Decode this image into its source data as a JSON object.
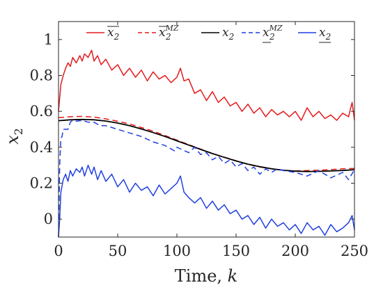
{
  "chart_data": {
    "type": "line",
    "title": "",
    "xlabel_text": "Time, ",
    "xlabel_var": "k",
    "ylabel_var": "x",
    "ylabel_sub": "2",
    "xlim": [
      0,
      250
    ],
    "ylim": [
      -0.1,
      1.1
    ],
    "xticks": [
      0,
      50,
      100,
      150,
      200,
      250
    ],
    "yticks": [
      0,
      0.2,
      0.4,
      0.6,
      0.8,
      1
    ],
    "grid": false,
    "legend_position": "top",
    "series": [
      {
        "legend": {
          "base": "x",
          "sub": "2",
          "sup": "",
          "overline": true,
          "underline": false
        },
        "color": "#e41a1c",
        "dash": "solid",
        "x": [
          0,
          2,
          4,
          6,
          8,
          10,
          12,
          15,
          18,
          20,
          22,
          25,
          28,
          30,
          33,
          36,
          40,
          45,
          50,
          55,
          60,
          65,
          70,
          75,
          80,
          85,
          90,
          95,
          100,
          103,
          106,
          110,
          115,
          120,
          125,
          130,
          135,
          140,
          145,
          150,
          155,
          160,
          165,
          170,
          175,
          180,
          185,
          190,
          195,
          200,
          205,
          210,
          215,
          220,
          225,
          230,
          235,
          240,
          245,
          248,
          250
        ],
        "y": [
          0.6,
          0.75,
          0.8,
          0.84,
          0.87,
          0.85,
          0.9,
          0.87,
          0.91,
          0.88,
          0.92,
          0.9,
          0.94,
          0.88,
          0.91,
          0.86,
          0.89,
          0.83,
          0.86,
          0.8,
          0.84,
          0.79,
          0.83,
          0.77,
          0.82,
          0.78,
          0.8,
          0.76,
          0.79,
          0.84,
          0.77,
          0.78,
          0.7,
          0.72,
          0.66,
          0.71,
          0.65,
          0.68,
          0.63,
          0.65,
          0.6,
          0.64,
          0.59,
          0.62,
          0.57,
          0.61,
          0.58,
          0.6,
          0.57,
          0.6,
          0.55,
          0.62,
          0.57,
          0.6,
          0.56,
          0.58,
          0.55,
          0.59,
          0.57,
          0.65,
          0.55
        ]
      },
      {
        "legend": {
          "base": "x",
          "sub": "2",
          "sup": "MZ",
          "overline": true,
          "underline": false
        },
        "color": "#e41a1c",
        "dash": "8,5",
        "x": [
          0,
          10,
          20,
          30,
          40,
          50,
          60,
          70,
          80,
          90,
          100,
          110,
          120,
          130,
          140,
          150,
          160,
          170,
          180,
          190,
          200,
          210,
          220,
          230,
          240,
          250
        ],
        "y": [
          0.565,
          0.57,
          0.572,
          0.568,
          0.558,
          0.545,
          0.53,
          0.51,
          0.49,
          0.465,
          0.44,
          0.415,
          0.39,
          0.365,
          0.345,
          0.325,
          0.305,
          0.29,
          0.28,
          0.272,
          0.268,
          0.27,
          0.272,
          0.276,
          0.28,
          0.282
        ]
      },
      {
        "legend": {
          "base": "x",
          "sub": "2",
          "sup": "",
          "overline": false,
          "underline": false
        },
        "color": "#000000",
        "dash": "solid",
        "x": [
          0,
          10,
          20,
          30,
          40,
          50,
          60,
          70,
          80,
          90,
          100,
          110,
          120,
          130,
          140,
          150,
          160,
          170,
          180,
          190,
          200,
          210,
          220,
          230,
          240,
          250
        ],
        "y": [
          0.548,
          0.553,
          0.555,
          0.553,
          0.546,
          0.535,
          0.52,
          0.502,
          0.482,
          0.46,
          0.436,
          0.412,
          0.388,
          0.365,
          0.344,
          0.324,
          0.306,
          0.292,
          0.28,
          0.272,
          0.267,
          0.265,
          0.266,
          0.268,
          0.271,
          0.275
        ]
      },
      {
        "legend": {
          "base": "x",
          "sub": "2",
          "sup": "MZ",
          "overline": false,
          "underline": true
        },
        "color": "#1f3fe0",
        "dash": "8,5",
        "x": [
          0,
          1,
          2,
          3,
          4,
          6,
          8,
          10,
          12,
          15,
          20,
          25,
          30,
          35,
          40,
          50,
          60,
          70,
          80,
          90,
          98,
          100,
          110,
          115,
          120,
          125,
          130,
          135,
          140,
          145,
          150,
          155,
          160,
          165,
          170,
          175,
          180,
          185,
          190,
          200,
          210,
          220,
          230,
          240,
          245,
          250
        ],
        "y": [
          -0.1,
          0.3,
          0.45,
          0.46,
          0.5,
          0.5,
          0.5,
          0.54,
          0.55,
          0.545,
          0.55,
          0.54,
          0.54,
          0.52,
          0.52,
          0.5,
          0.48,
          0.46,
          0.43,
          0.41,
          0.38,
          0.4,
          0.37,
          0.4,
          0.36,
          0.37,
          0.33,
          0.35,
          0.31,
          0.33,
          0.29,
          0.31,
          0.27,
          0.29,
          0.25,
          0.28,
          0.26,
          0.28,
          0.27,
          0.26,
          0.24,
          0.27,
          0.23,
          0.26,
          0.22,
          0.275
        ]
      },
      {
        "legend": {
          "base": "x",
          "sub": "2",
          "sup": "",
          "overline": false,
          "underline": true
        },
        "color": "#1f3fe0",
        "dash": "solid",
        "x": [
          0,
          1,
          2,
          4,
          6,
          8,
          10,
          12,
          15,
          18,
          20,
          22,
          25,
          28,
          30,
          33,
          36,
          40,
          45,
          50,
          55,
          60,
          65,
          70,
          75,
          80,
          85,
          90,
          95,
          100,
          103,
          106,
          110,
          115,
          120,
          125,
          130,
          135,
          140,
          145,
          150,
          155,
          160,
          165,
          170,
          175,
          180,
          185,
          190,
          195,
          200,
          205,
          210,
          215,
          220,
          225,
          230,
          235,
          240,
          245,
          248,
          250
        ],
        "y": [
          -0.1,
          0.0,
          0.15,
          0.22,
          0.25,
          0.21,
          0.27,
          0.24,
          0.28,
          0.26,
          0.29,
          0.24,
          0.3,
          0.25,
          0.29,
          0.22,
          0.27,
          0.21,
          0.25,
          0.18,
          0.22,
          0.15,
          0.2,
          0.16,
          0.18,
          0.13,
          0.19,
          0.14,
          0.17,
          0.2,
          0.24,
          0.15,
          0.12,
          0.09,
          0.12,
          0.06,
          0.1,
          0.05,
          0.08,
          0.03,
          0.05,
          0.0,
          0.02,
          -0.03,
          0.01,
          -0.05,
          0.0,
          -0.04,
          -0.02,
          -0.06,
          -0.03,
          -0.08,
          -0.02,
          -0.06,
          -0.04,
          -0.09,
          -0.03,
          -0.07,
          -0.05,
          -0.02,
          0.02,
          -0.06
        ]
      }
    ]
  }
}
